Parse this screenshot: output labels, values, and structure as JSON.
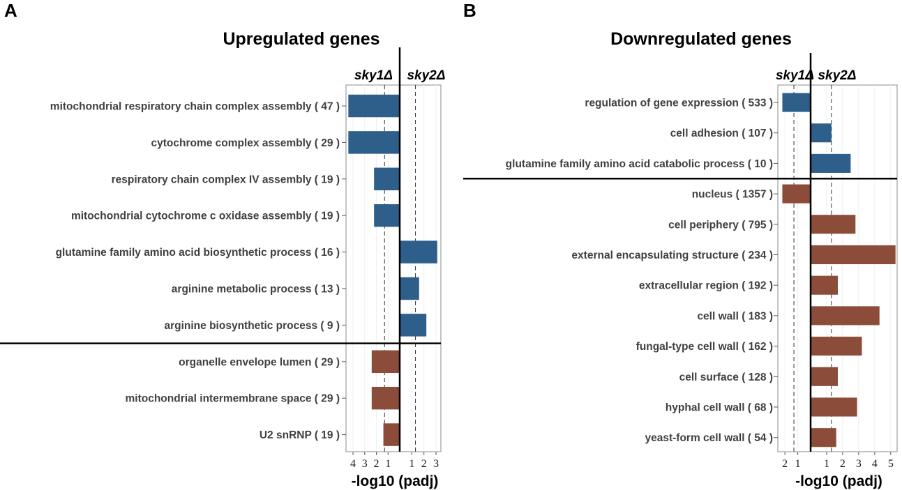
{
  "chart_data": [
    {
      "type": "bar",
      "orientation": "horizontal",
      "panel": "A",
      "title": "Upregulated genes",
      "xlabel": "-log10 (padj)",
      "left_label": "sky1Δ",
      "right_label": "sky2Δ",
      "xlim_left": 4.6,
      "xlim_right": 3.4,
      "threshold": 1.3,
      "left_ticks": [
        "4",
        "3",
        "2",
        "1"
      ],
      "right_ticks": [
        "1",
        "2",
        "3"
      ],
      "colors": {
        "up": "#2e5f8a",
        "down": "#8c4c3a"
      },
      "categories": [
        "mitochondrial respiratory chain complex assembly ( 47 )",
        "cytochrome complex assembly ( 29 )",
        "respiratory chain complex IV assembly ( 19 )",
        "mitochondrial cytochrome c oxidase assembly ( 19 )",
        "glutamine family amino acid biosynthetic process ( 16 )",
        "arginine metabolic process ( 13 )",
        "arginine biosynthetic process ( 9 )",
        "organelle envelope lumen ( 29 )",
        "mitochondrial intermembrane space ( 29 )",
        "U2 snRNP ( 19 )"
      ],
      "values": [
        -4.4,
        -4.4,
        -2.2,
        -2.2,
        3.1,
        1.6,
        2.2,
        -2.4,
        -2.4,
        -1.4
      ],
      "groups": [
        "up",
        "up",
        "up",
        "up",
        "up",
        "up",
        "up",
        "down",
        "down",
        "down"
      ],
      "separator_after": 7
    },
    {
      "type": "bar",
      "orientation": "horizontal",
      "panel": "B",
      "title": "Downregulated genes",
      "xlabel": "-log10 (padj)",
      "left_label": "sky1Δ",
      "right_label": "sky2Δ",
      "xlim_left": 2.55,
      "xlim_right": 5.4,
      "threshold": 1.3,
      "left_ticks": [
        "2",
        "1"
      ],
      "right_ticks": [
        "1",
        "2",
        "3",
        "4",
        "5"
      ],
      "colors": {
        "up": "#2e5f8a",
        "down": "#8c4c3a"
      },
      "categories": [
        "regulation of gene expression ( 533 )",
        "cell adhesion ( 107 )",
        "glutamine family amino acid catabolic process ( 10 )",
        "nucleus ( 1357 )",
        "cell periphery ( 795 )",
        "external encapsulating structure ( 234 )",
        "extracellular region ( 192 )",
        "cell wall ( 183 )",
        "fungal-type cell wall ( 162 )",
        "cell surface ( 128 )",
        "hyphal cell wall ( 68 )",
        "yeast-form cell wall ( 54 )"
      ],
      "values": [
        -2.2,
        1.3,
        2.5,
        -2.2,
        2.8,
        5.3,
        1.7,
        4.3,
        3.2,
        1.7,
        2.9,
        1.6
      ],
      "groups": [
        "up",
        "up",
        "up",
        "down",
        "down",
        "down",
        "down",
        "down",
        "down",
        "down",
        "down",
        "down"
      ],
      "separator_after": 3
    }
  ],
  "panel_letters": [
    "A",
    "B"
  ]
}
